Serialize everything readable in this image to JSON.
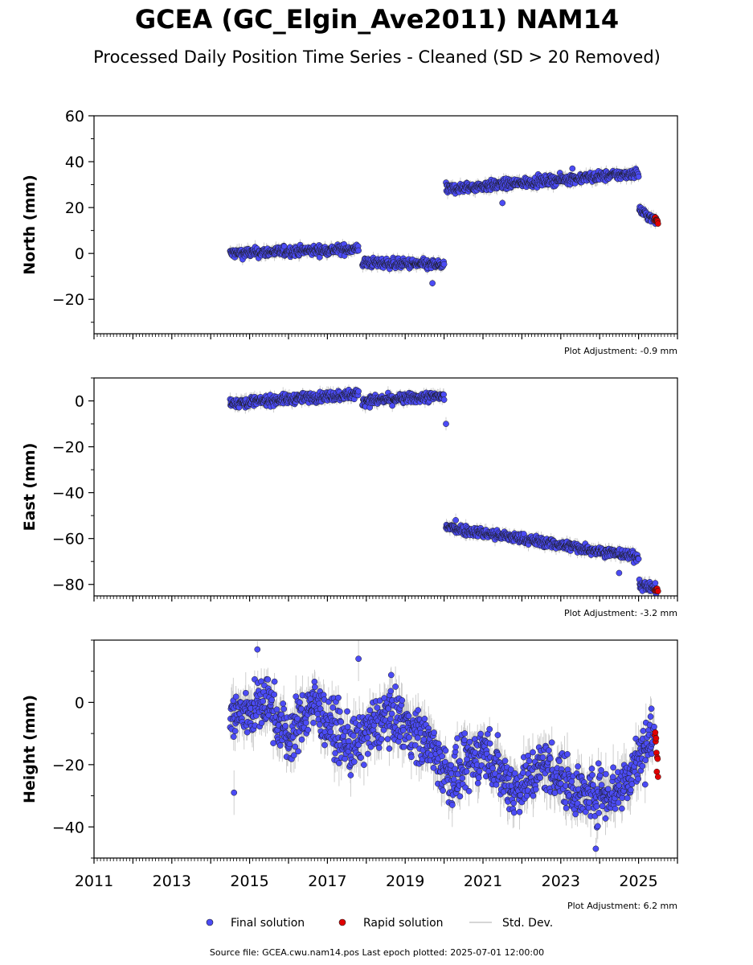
{
  "header": {
    "title": "GCEA (GC_Elgin_Ave2011) NAM14",
    "subtitle": "Processed Daily Position Time Series - Cleaned (SD > 20 Removed)"
  },
  "legend": {
    "final": "Final solution",
    "rapid": "Rapid solution",
    "std": "Std. Dev."
  },
  "footer": {
    "source": "Source file: GCEA.cwu.nam14.pos  Last epoch plotted: 2025-07-01 12:00:00"
  },
  "colors": {
    "final": "#4b4bf5",
    "rapid": "#e00000",
    "std_dev": "#c8c8c8",
    "marker_edge": "#1a1a1a"
  },
  "chart_data": [
    {
      "type": "scatter",
      "ylabel": "North (mm)",
      "adjustment": "Plot Adjustment: -0.9 mm",
      "xlim": [
        2011,
        2026
      ],
      "ylim": [
        -35,
        60
      ],
      "yticks": [
        -20,
        0,
        20,
        40,
        60
      ],
      "ytick_labels": [
        "−20",
        "0",
        "20",
        "40",
        "60"
      ],
      "noise": 1.5,
      "sd": 2,
      "final_segments": [
        {
          "x": [
            2014.5,
            2017.8
          ],
          "y": [
            0,
            2
          ]
        },
        {
          "x": [
            2017.9,
            2020.0
          ],
          "y": [
            -4,
            -5
          ]
        },
        {
          "x": [
            2020.05,
            2025.0
          ],
          "y": [
            28,
            35
          ]
        },
        {
          "x": [
            2025.02,
            2025.45
          ],
          "y": [
            19,
            14
          ]
        }
      ],
      "final_outliers": [
        {
          "x": 2019.7,
          "y": -13
        },
        {
          "x": 2021.5,
          "y": 22
        },
        {
          "x": 2023.3,
          "y": 37
        }
      ],
      "rapid_segments": [
        {
          "x": [
            2025.42,
            2025.5
          ],
          "y": [
            15,
            14
          ]
        }
      ]
    },
    {
      "type": "scatter",
      "ylabel": "East (mm)",
      "adjustment": "Plot Adjustment: -3.2 mm",
      "xlim": [
        2011,
        2026
      ],
      "ylim": [
        -85,
        10
      ],
      "yticks": [
        -80,
        -60,
        -40,
        -20,
        0
      ],
      "ytick_labels": [
        "−80",
        "−60",
        "−40",
        "−20",
        "0"
      ],
      "noise": 1.5,
      "sd": 2,
      "final_segments": [
        {
          "x": [
            2014.5,
            2017.8
          ],
          "y": [
            -1,
            3
          ]
        },
        {
          "x": [
            2017.9,
            2020.0
          ],
          "y": [
            0,
            2
          ]
        },
        {
          "x": [
            2020.05,
            2025.0
          ],
          "y": [
            -55,
            -68
          ]
        },
        {
          "x": [
            2025.02,
            2025.45
          ],
          "y": [
            -80,
            -82
          ]
        }
      ],
      "final_outliers": [
        {
          "x": 2020.05,
          "y": -10
        },
        {
          "x": 2024.5,
          "y": -75
        },
        {
          "x": 2020.3,
          "y": -52
        }
      ],
      "rapid_segments": [
        {
          "x": [
            2025.42,
            2025.5
          ],
          "y": [
            -82,
            -83
          ]
        }
      ]
    },
    {
      "type": "scatter",
      "ylabel": "Height (mm)",
      "adjustment": "Plot Adjustment: 6.2 mm",
      "xlim": [
        2011,
        2026
      ],
      "ylim": [
        -50,
        20
      ],
      "yticks": [
        -40,
        -20,
        0
      ],
      "ytick_labels": [
        "−40",
        "−20",
        "0"
      ],
      "xticks": [
        2011,
        2013,
        2015,
        2017,
        2019,
        2021,
        2023,
        2025
      ],
      "xtick_labels": [
        "2011",
        "2013",
        "2015",
        "2017",
        "2019",
        "2021",
        "2023",
        "2025"
      ],
      "noise": 6,
      "sd": 5,
      "final_segments": [
        {
          "x": [
            2014.5,
            2015.5
          ],
          "y": [
            -5,
            0
          ]
        },
        {
          "x": [
            2015.5,
            2016.0
          ],
          "y": [
            0,
            -12
          ]
        },
        {
          "x": [
            2016.0,
            2016.6
          ],
          "y": [
            -12,
            0
          ]
        },
        {
          "x": [
            2016.6,
            2017.6
          ],
          "y": [
            0,
            -15
          ]
        },
        {
          "x": [
            2017.6,
            2018.6
          ],
          "y": [
            -15,
            -3
          ]
        },
        {
          "x": [
            2018.6,
            2019.6
          ],
          "y": [
            -3,
            -13
          ]
        },
        {
          "x": [
            2019.6,
            2020.2
          ],
          "y": [
            -13,
            -25
          ]
        },
        {
          "x": [
            2020.2,
            2021.0
          ],
          "y": [
            -25,
            -15
          ]
        },
        {
          "x": [
            2021.0,
            2021.8
          ],
          "y": [
            -15,
            -28
          ]
        },
        {
          "x": [
            2021.8,
            2022.6
          ],
          "y": [
            -28,
            -20
          ]
        },
        {
          "x": [
            2022.6,
            2023.6
          ],
          "y": [
            -20,
            -30
          ]
        },
        {
          "x": [
            2023.6,
            2024.5
          ],
          "y": [
            -30,
            -28
          ]
        },
        {
          "x": [
            2024.5,
            2025.4
          ],
          "y": [
            -28,
            -10
          ]
        }
      ],
      "final_outliers": [
        {
          "x": 2015.2,
          "y": 17
        },
        {
          "x": 2017.8,
          "y": 14
        },
        {
          "x": 2023.9,
          "y": -47
        },
        {
          "x": 2014.6,
          "y": -29
        }
      ],
      "rapid_segments": [
        {
          "x": [
            2025.42,
            2025.5
          ],
          "y": [
            -10,
            -20
          ]
        }
      ]
    }
  ]
}
